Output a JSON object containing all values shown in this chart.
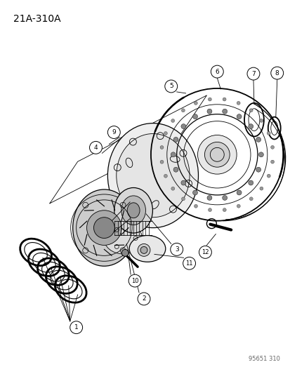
{
  "title": "21A-310A",
  "watermark": "95651 310",
  "background_color": "#ffffff",
  "line_color": "#000000",
  "fig_width": 4.14,
  "fig_height": 5.33,
  "dpi": 100
}
